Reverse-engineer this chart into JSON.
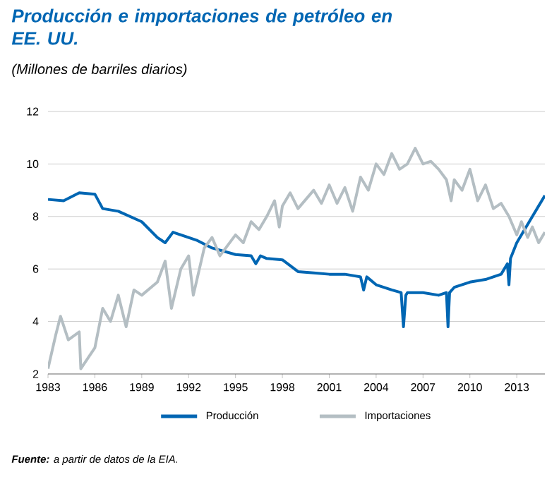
{
  "chart_data": {
    "type": "line",
    "title": "Producción e importaciones de petróleo en EE. UU.",
    "subtitle": "(Millones de barriles diarios)",
    "annotations": [
      "**Fuente:** a partir de datos de la EIA."
    ],
    "xlim": [
      1983,
      2014.8
    ],
    "xticks": [
      1983,
      1986,
      1989,
      1992,
      1995,
      1998,
      2001,
      2004,
      2007,
      2010,
      2013
    ],
    "ylim": [
      2,
      12
    ],
    "yticks": [
      2,
      4,
      6,
      8,
      10,
      12
    ],
    "grid": "y",
    "legend": "bottom",
    "series": [
      {
        "name": "Producción",
        "color": "#0066b3",
        "x": [
          1983,
          1984,
          1985,
          1986,
          1986.5,
          1987.5,
          1989,
          1990,
          1990.5,
          1991,
          1992.5,
          1993.5,
          1995,
          1996,
          1996.3,
          1996.6,
          1997,
          1998,
          1999,
          2000,
          2001,
          2002,
          2003,
          2003.2,
          2003.4,
          2004,
          2005,
          2005.6,
          2005.75,
          2005.9,
          2006,
          2007,
          2008,
          2008.5,
          2008.6,
          2008.7,
          2009,
          2010,
          2011,
          2012,
          2012.4,
          2012.5,
          2012.6,
          2013,
          2014,
          2014.8
        ],
        "values": [
          8.65,
          8.6,
          8.9,
          8.85,
          8.3,
          8.2,
          7.8,
          7.2,
          7.0,
          7.4,
          7.1,
          6.8,
          6.55,
          6.5,
          6.2,
          6.5,
          6.4,
          6.35,
          5.9,
          5.85,
          5.8,
          5.8,
          5.7,
          5.2,
          5.7,
          5.4,
          5.2,
          5.1,
          3.8,
          5.0,
          5.1,
          5.1,
          5.0,
          5.1,
          3.8,
          5.1,
          5.3,
          5.5,
          5.6,
          5.8,
          6.2,
          5.4,
          6.4,
          7.0,
          8.0,
          8.8
        ]
      },
      {
        "name": "Importaciones",
        "color": "#b4bec3",
        "x": [
          1983,
          1983.5,
          1983.8,
          1984.3,
          1985,
          1985.1,
          1986,
          1986.5,
          1987,
          1987.5,
          1988,
          1988.5,
          1989,
          1990,
          1990.5,
          1990.9,
          1991.5,
          1992,
          1992.3,
          1993,
          1993.5,
          1994,
          1995,
          1995.5,
          1996,
          1996.5,
          1997,
          1997.5,
          1997.8,
          1998,
          1998.5,
          1999,
          2000,
          2000.5,
          2001,
          2001.5,
          2002,
          2002.5,
          2003,
          2003.5,
          2004,
          2004.5,
          2005,
          2005.5,
          2006,
          2006.5,
          2007,
          2007.5,
          2008,
          2008.5,
          2008.8,
          2009,
          2009.5,
          2010,
          2010.5,
          2011,
          2011.5,
          2012,
          2012.5,
          2013,
          2013.3,
          2013.7,
          2014,
          2014.4,
          2014.8
        ],
        "values": [
          2.2,
          3.5,
          4.2,
          3.3,
          3.6,
          2.2,
          3.0,
          4.5,
          4.0,
          5.0,
          3.8,
          5.2,
          5.0,
          5.5,
          6.3,
          4.5,
          6.0,
          6.5,
          5.0,
          6.8,
          7.2,
          6.5,
          7.3,
          7.0,
          7.8,
          7.5,
          8.0,
          8.6,
          7.6,
          8.4,
          8.9,
          8.3,
          9.0,
          8.5,
          9.2,
          8.5,
          9.1,
          8.2,
          9.5,
          9.0,
          10.0,
          9.6,
          10.4,
          9.8,
          10.0,
          10.6,
          10.0,
          10.1,
          9.8,
          9.4,
          8.6,
          9.4,
          9.0,
          9.8,
          8.6,
          9.2,
          8.3,
          8.5,
          8.0,
          7.3,
          7.8,
          7.2,
          7.6,
          7.0,
          7.4
        ]
      }
    ]
  }
}
